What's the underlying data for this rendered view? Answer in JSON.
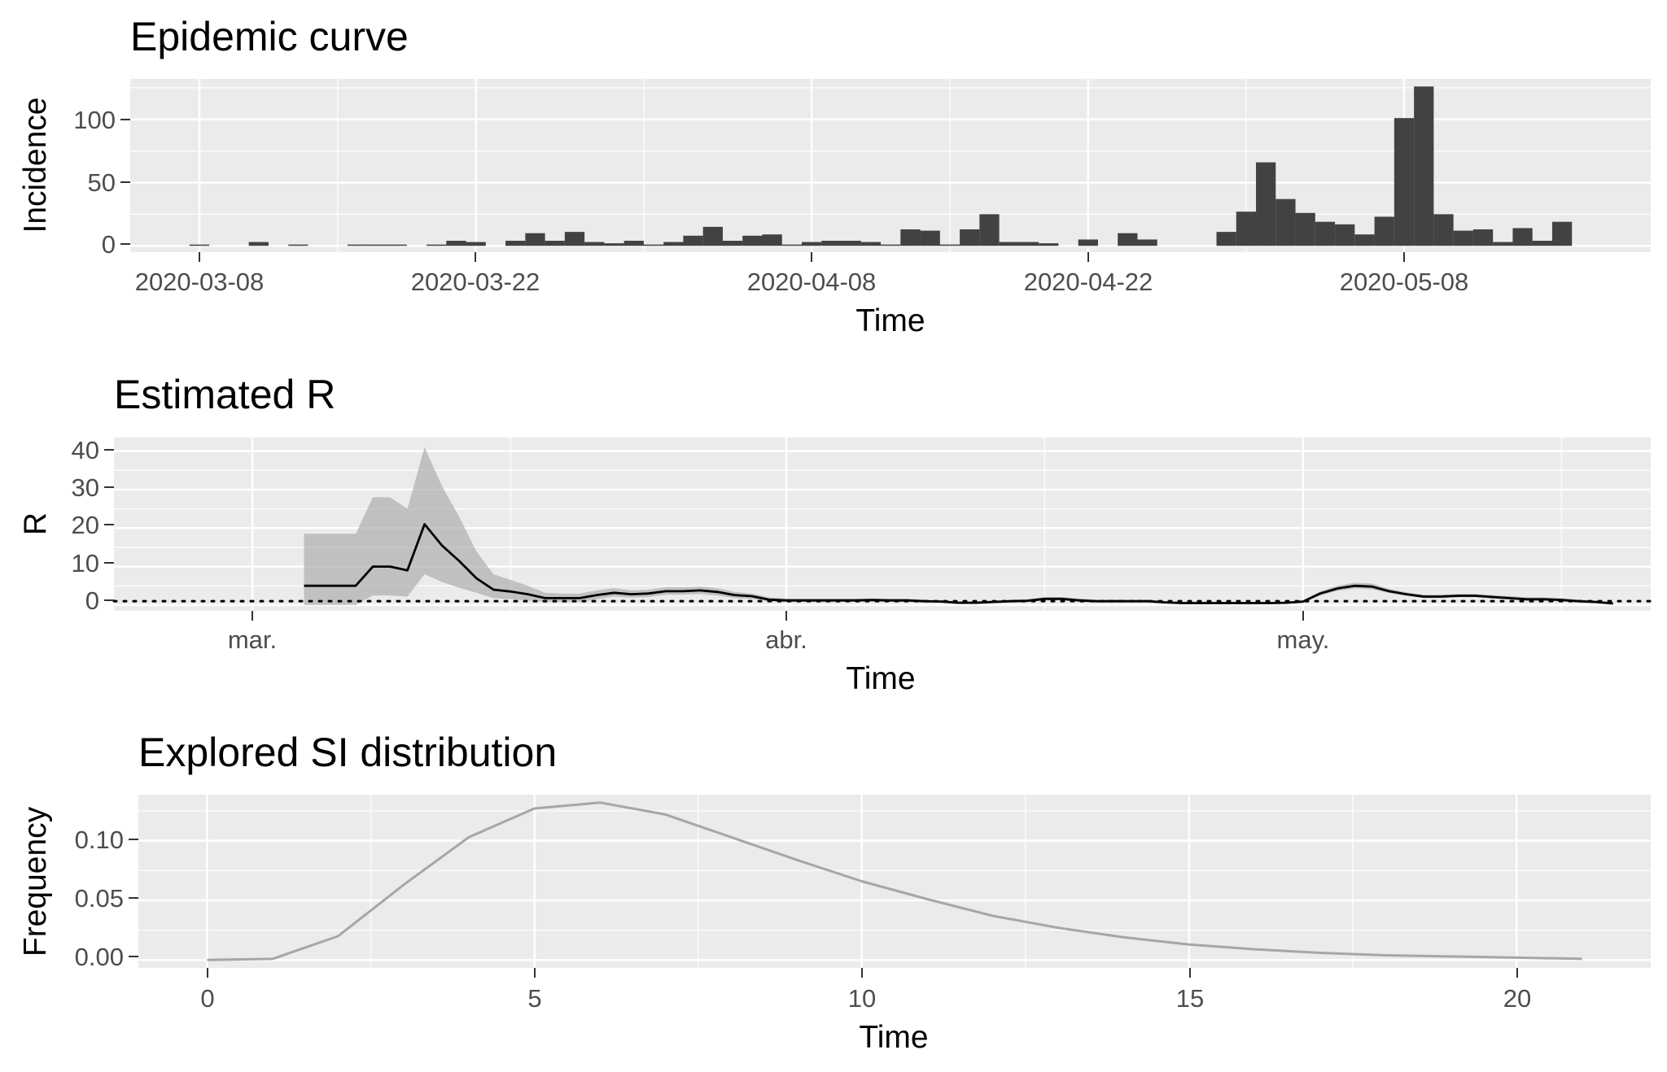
{
  "chart_data": [
    {
      "type": "bar",
      "title": "Epidemic curve",
      "xlabel": "Time",
      "ylabel": "Incidence",
      "x_ticks": [
        "2020-03-08",
        "2020-03-22",
        "2020-04-08",
        "2020-04-22",
        "2020-05-08"
      ],
      "y_ticks": [
        "0",
        "50",
        "100"
      ],
      "ylim": [
        -5,
        132
      ],
      "grid": true,
      "dates": [
        "2020-03-08",
        "2020-03-09",
        "2020-03-10",
        "2020-03-11",
        "2020-03-12",
        "2020-03-13",
        "2020-03-14",
        "2020-03-15",
        "2020-03-16",
        "2020-03-17",
        "2020-03-18",
        "2020-03-19",
        "2020-03-20",
        "2020-03-21",
        "2020-03-22",
        "2020-03-23",
        "2020-03-24",
        "2020-03-25",
        "2020-03-26",
        "2020-03-27",
        "2020-03-28",
        "2020-03-29",
        "2020-03-30",
        "2020-03-31",
        "2020-04-01",
        "2020-04-02",
        "2020-04-03",
        "2020-04-04",
        "2020-04-05",
        "2020-04-06",
        "2020-04-07",
        "2020-04-08",
        "2020-04-09",
        "2020-04-10",
        "2020-04-11",
        "2020-04-12",
        "2020-04-13",
        "2020-04-14",
        "2020-04-15",
        "2020-04-16",
        "2020-04-17",
        "2020-04-18",
        "2020-04-19",
        "2020-04-20",
        "2020-04-21",
        "2020-04-22",
        "2020-04-23",
        "2020-04-24",
        "2020-04-25",
        "2020-04-26",
        "2020-04-27",
        "2020-04-28",
        "2020-04-29",
        "2020-04-30",
        "2020-05-01",
        "2020-05-02",
        "2020-05-03",
        "2020-05-04",
        "2020-05-05",
        "2020-05-06",
        "2020-05-07",
        "2020-05-08",
        "2020-05-09",
        "2020-05-10",
        "2020-05-11",
        "2020-05-12",
        "2020-05-13",
        "2020-05-14",
        "2020-05-15",
        "2020-05-16",
        "2020-05-17",
        "2020-05-18",
        "2020-05-19"
      ],
      "values": [
        1,
        0,
        0,
        3,
        0,
        1,
        0,
        0,
        1,
        1,
        1,
        0,
        1,
        4,
        3,
        0,
        4,
        10,
        4,
        11,
        3,
        2,
        4,
        1,
        3,
        8,
        15,
        4,
        8,
        9,
        1,
        3,
        4,
        4,
        3,
        1,
        13,
        12,
        1,
        13,
        25,
        3,
        3,
        2,
        0,
        5,
        0,
        10,
        5,
        0,
        0,
        0,
        11,
        27,
        66,
        37,
        26,
        19,
        17,
        9,
        23,
        101,
        126,
        25,
        12,
        13,
        3,
        14,
        4,
        19,
        0,
        0,
        0
      ]
    },
    {
      "type": "line",
      "title": "Estimated R",
      "xlabel": "Time",
      "ylabel": "R",
      "x_ticks": [
        "mar.",
        "abr.",
        "may."
      ],
      "y_ticks": [
        "0",
        "10",
        "20",
        "30",
        "40"
      ],
      "ylim": [
        -1.5,
        43.5
      ],
      "grid": true,
      "reference_line": 1,
      "dates": [
        "2020-03-04",
        "2020-03-05",
        "2020-03-06",
        "2020-03-07",
        "2020-03-08",
        "2020-03-09",
        "2020-03-10",
        "2020-03-11",
        "2020-03-12",
        "2020-03-13",
        "2020-03-14",
        "2020-03-15",
        "2020-03-16",
        "2020-03-17",
        "2020-03-18",
        "2020-03-19",
        "2020-03-20",
        "2020-03-21",
        "2020-03-22",
        "2020-03-23",
        "2020-03-24",
        "2020-03-25",
        "2020-03-26",
        "2020-03-27",
        "2020-03-28",
        "2020-03-29",
        "2020-03-30",
        "2020-03-31",
        "2020-04-01",
        "2020-04-02",
        "2020-04-03",
        "2020-04-04",
        "2020-04-05",
        "2020-04-06",
        "2020-04-07",
        "2020-04-08",
        "2020-04-09",
        "2020-04-10",
        "2020-04-11",
        "2020-04-12",
        "2020-04-13",
        "2020-04-14",
        "2020-04-15",
        "2020-04-16",
        "2020-04-17",
        "2020-04-18",
        "2020-04-19",
        "2020-04-20",
        "2020-04-21",
        "2020-04-22",
        "2020-04-23",
        "2020-04-24",
        "2020-04-25",
        "2020-04-26",
        "2020-04-27",
        "2020-04-28",
        "2020-04-29",
        "2020-04-30",
        "2020-05-01",
        "2020-05-02",
        "2020-05-03",
        "2020-05-04",
        "2020-05-05",
        "2020-05-06",
        "2020-05-07",
        "2020-05-08",
        "2020-05-09",
        "2020-05-10",
        "2020-05-11",
        "2020-05-12",
        "2020-05-13",
        "2020-05-14",
        "2020-05-15",
        "2020-05-16",
        "2020-05-17",
        "2020-05-18",
        "2020-05-19"
      ],
      "mean": [
        5,
        5,
        5,
        5,
        10,
        10,
        9,
        21,
        15.5,
        11.5,
        7,
        4,
        3.5,
        2.8,
        1.8,
        1.8,
        1.8,
        2.6,
        3.2,
        2.8,
        3,
        3.6,
        3.6,
        3.8,
        3.4,
        2.6,
        2.3,
        1.4,
        1.2,
        1.2,
        1.2,
        1.2,
        1.2,
        1.3,
        1.2,
        1.2,
        1,
        0.9,
        0.6,
        0.6,
        0.8,
        1,
        1.1,
        1.6,
        1.6,
        1.2,
        1,
        1,
        1,
        1,
        0.7,
        0.5,
        0.5,
        0.5,
        0.5,
        0.5,
        0.5,
        0.6,
        0.9,
        3,
        4.3,
        5,
        4.8,
        3.6,
        2.8,
        2.2,
        2.2,
        2.4,
        2.4,
        2.1,
        1.8,
        1.5,
        1.5,
        1.3,
        1,
        0.8,
        0.4
      ],
      "upper": [
        18.5,
        18.5,
        18.5,
        18.5,
        28,
        28,
        25,
        41,
        31,
        23,
        14,
        8,
        6.5,
        5,
        3.2,
        3,
        3,
        3.8,
        4.4,
        3.8,
        4,
        4.6,
        4.6,
        4.8,
        4.4,
        3.4,
        3,
        2,
        1.7,
        1.6,
        1.6,
        1.6,
        1.6,
        1.7,
        1.6,
        1.6,
        1.4,
        1.3,
        1,
        1,
        1.2,
        1.4,
        1.5,
        2.1,
        2.1,
        1.7,
        1.4,
        1.4,
        1.4,
        1.4,
        1.1,
        0.9,
        0.9,
        0.8,
        0.8,
        0.8,
        0.8,
        0.9,
        1.2,
        3.6,
        5,
        5.8,
        5.6,
        4.2,
        3.3,
        2.7,
        2.7,
        2.9,
        2.9,
        2.6,
        2.3,
        2,
        2,
        1.8,
        1.4,
        1.2,
        0.7
      ],
      "lower": [
        0,
        0,
        0,
        0,
        2.5,
        2.5,
        2.2,
        8,
        6,
        4.5,
        3.2,
        1.8,
        1.5,
        1.2,
        0.8,
        0.8,
        0.8,
        1.5,
        2.2,
        1.9,
        2.1,
        2.7,
        2.7,
        2.9,
        2.5,
        1.8,
        1.6,
        0.9,
        0.8,
        0.8,
        0.8,
        0.8,
        0.8,
        0.9,
        0.8,
        0.8,
        0.7,
        0.6,
        0.3,
        0.3,
        0.5,
        0.7,
        0.8,
        1.2,
        1.2,
        0.8,
        0.7,
        0.7,
        0.7,
        0.7,
        0.4,
        0.3,
        0.3,
        0.3,
        0.3,
        0.3,
        0.3,
        0.4,
        0.6,
        2.5,
        3.7,
        4.3,
        4.1,
        3.1,
        2.4,
        1.8,
        1.8,
        2,
        2,
        1.7,
        1.4,
        1.1,
        1.1,
        0.9,
        0.7,
        0.5,
        0.2
      ]
    },
    {
      "type": "line",
      "title": "Explored SI distribution",
      "xlabel": "Time",
      "ylabel": "Frequency",
      "x_ticks": [
        "0",
        "5",
        "10",
        "15",
        "20"
      ],
      "y_ticks": [
        "0.00",
        "0.05",
        "0.10"
      ],
      "xlim": [
        -1.05,
        22.05
      ],
      "ylim": [
        -0.0066,
        0.1386
      ],
      "grid": true,
      "x": [
        0,
        1,
        2,
        3,
        4,
        5,
        6,
        7,
        8,
        9,
        10,
        11,
        12,
        13,
        14,
        15,
        16,
        17,
        18,
        19,
        20,
        21
      ],
      "y": [
        0,
        0.001,
        0.02,
        0.063,
        0.103,
        0.127,
        0.132,
        0.122,
        0.103,
        0.084,
        0.066,
        0.051,
        0.037,
        0.027,
        0.019,
        0.013,
        0.009,
        0.006,
        0.004,
        0.003,
        0.002,
        0.001
      ]
    }
  ]
}
